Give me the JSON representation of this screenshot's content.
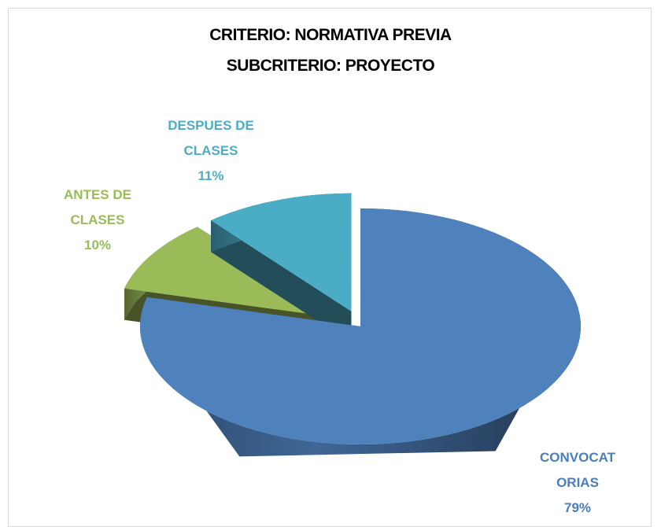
{
  "chart_data": {
    "type": "pie",
    "title": [
      "CRITERIO: NORMATIVA PREVIA",
      "SUBCRITERIO: PROYECTO"
    ],
    "categories": [
      "CONVOCATORIAS",
      "ANTES DE CLASES",
      "DESPUES DE CLASES"
    ],
    "values": [
      79,
      10,
      11
    ],
    "value_labels": [
      "79%",
      "10%",
      "11%"
    ],
    "colors": [
      "#4f81bd",
      "#9bbb59",
      "#4bacc6"
    ],
    "label_colors": [
      "#4a7ebb",
      "#9bbb59",
      "#4bacc6"
    ],
    "exploded": [
      false,
      true,
      true
    ],
    "three_d": true
  }
}
